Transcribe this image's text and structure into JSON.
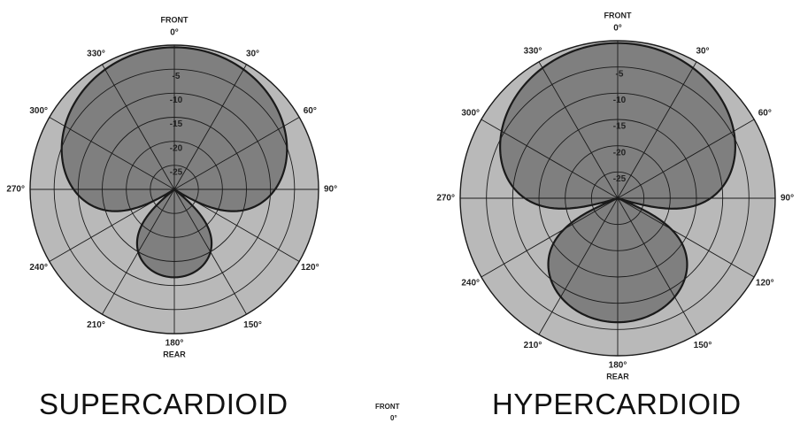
{
  "polar_plots": [
    {
      "title": "SUPERCARDIOID",
      "top_label": "FRONT",
      "bottom_label": "REAR",
      "angle_labels": [
        "0°",
        "30°",
        "60°",
        "90°",
        "120°",
        "150°",
        "180°",
        "210°",
        "240°",
        "270°",
        "300°",
        "330°"
      ],
      "ring_labels": [
        "-5",
        "-10",
        "-15",
        "-20",
        "-25"
      ],
      "pattern": "supercardioid",
      "front_lobe_fraction": 0.366,
      "rear_lobe_fraction": 0.634
    },
    {
      "title": "HYPERCARDIOID",
      "top_label": "FRONT",
      "bottom_label": "REAR",
      "angle_labels": [
        "0°",
        "30°",
        "60°",
        "90°",
        "120°",
        "150°",
        "180°",
        "210°",
        "240°",
        "270°",
        "300°",
        "330°"
      ],
      "ring_labels": [
        "-5",
        "-10",
        "-15",
        "-20",
        "-25"
      ],
      "pattern": "hypercardioid",
      "front_lobe_fraction": 0.25,
      "rear_lobe_fraction": 0.75
    }
  ],
  "partial_label": {
    "front": "FRONT",
    "zero": "0°"
  },
  "colors": {
    "disc_fill": "#b9b9b9",
    "pattern_fill": "#7f7f7f",
    "line": "#1a1a1a"
  }
}
